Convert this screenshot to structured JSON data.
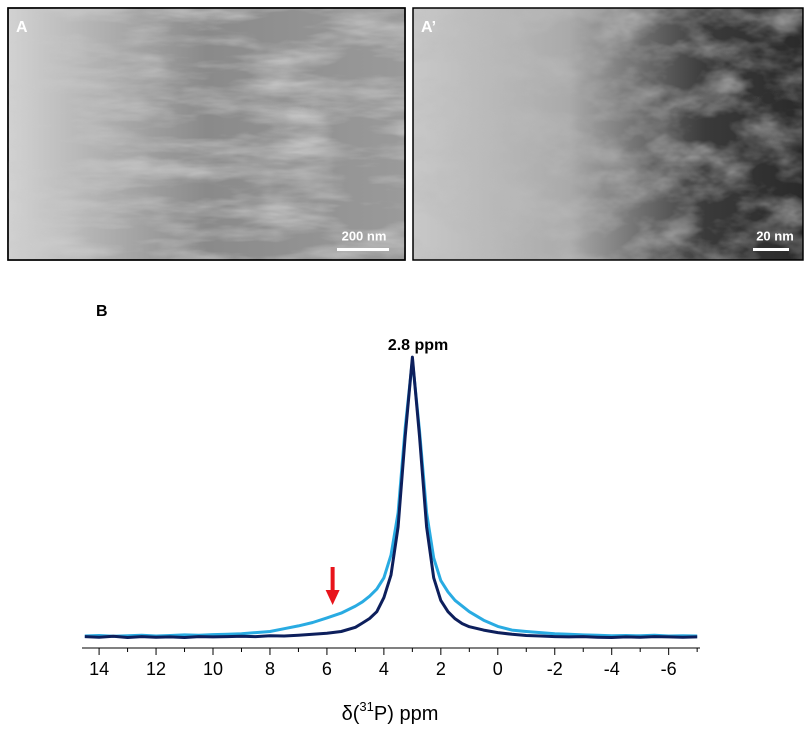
{
  "images": [
    {
      "label": "A",
      "scale_bar": "200 nm"
    },
    {
      "label": "A’",
      "scale_bar": "20 nm"
    }
  ],
  "chart_data": {
    "type": "line",
    "panel_label": "B",
    "xlabel": {
      "pre": "δ(",
      "sup": "31",
      "post": "P) ppm"
    },
    "annotation": {
      "text": "2.8 ppm",
      "x": 2.8
    },
    "arrow": {
      "x": 5.8,
      "color": "#e8141b"
    },
    "x": [
      14.5,
      14,
      13.5,
      13,
      12.5,
      12,
      11.5,
      11,
      10.5,
      10,
      9.5,
      9,
      8.5,
      8,
      7.5,
      7,
      6.5,
      6,
      5.5,
      5,
      4.75,
      4.5,
      4.25,
      4,
      3.75,
      3.5,
      3.25,
      3,
      2.75,
      2.5,
      2.25,
      2,
      1.75,
      1.5,
      1.25,
      1,
      0.5,
      0,
      -0.5,
      -1,
      -1.5,
      -2,
      -2.5,
      -3,
      -3.5,
      -4,
      -4.5,
      -5,
      -5.5,
      -6,
      -6.5,
      -7
    ],
    "series": [
      {
        "color": "#29abe2",
        "values": [
          0.014,
          0.016,
          0.013,
          0.015,
          0.017,
          0.014,
          0.016,
          0.018,
          0.017,
          0.019,
          0.02,
          0.022,
          0.026,
          0.03,
          0.04,
          0.05,
          0.062,
          0.078,
          0.095,
          0.12,
          0.135,
          0.155,
          0.18,
          0.22,
          0.3,
          0.45,
          0.75,
          0.99,
          0.74,
          0.45,
          0.29,
          0.21,
          0.17,
          0.14,
          0.12,
          0.1,
          0.07,
          0.048,
          0.035,
          0.03,
          0.026,
          0.022,
          0.02,
          0.018,
          0.017,
          0.015,
          0.016,
          0.015,
          0.017,
          0.014,
          0.015,
          0.014
        ]
      },
      {
        "color": "#0d1f5c",
        "values": [
          0.012,
          0.01,
          0.013,
          0.009,
          0.012,
          0.01,
          0.011,
          0.009,
          0.012,
          0.011,
          0.012,
          0.013,
          0.012,
          0.015,
          0.014,
          0.017,
          0.02,
          0.024,
          0.03,
          0.045,
          0.06,
          0.076,
          0.1,
          0.15,
          0.23,
          0.4,
          0.72,
          1.0,
          0.72,
          0.4,
          0.22,
          0.14,
          0.1,
          0.075,
          0.058,
          0.047,
          0.035,
          0.026,
          0.02,
          0.016,
          0.014,
          0.012,
          0.011,
          0.012,
          0.01,
          0.009,
          0.011,
          0.01,
          0.012,
          0.011,
          0.01,
          0.011
        ]
      }
    ],
    "xlim": [
      14.6,
      -7.1
    ],
    "ylim": [
      0,
      1.05
    ],
    "xticks": [
      14,
      12,
      10,
      8,
      6,
      4,
      2,
      0,
      -2,
      -4,
      -6
    ],
    "xminor": [
      13,
      11,
      9,
      7,
      5,
      3,
      1,
      -1,
      -3,
      -5,
      -7
    ]
  }
}
